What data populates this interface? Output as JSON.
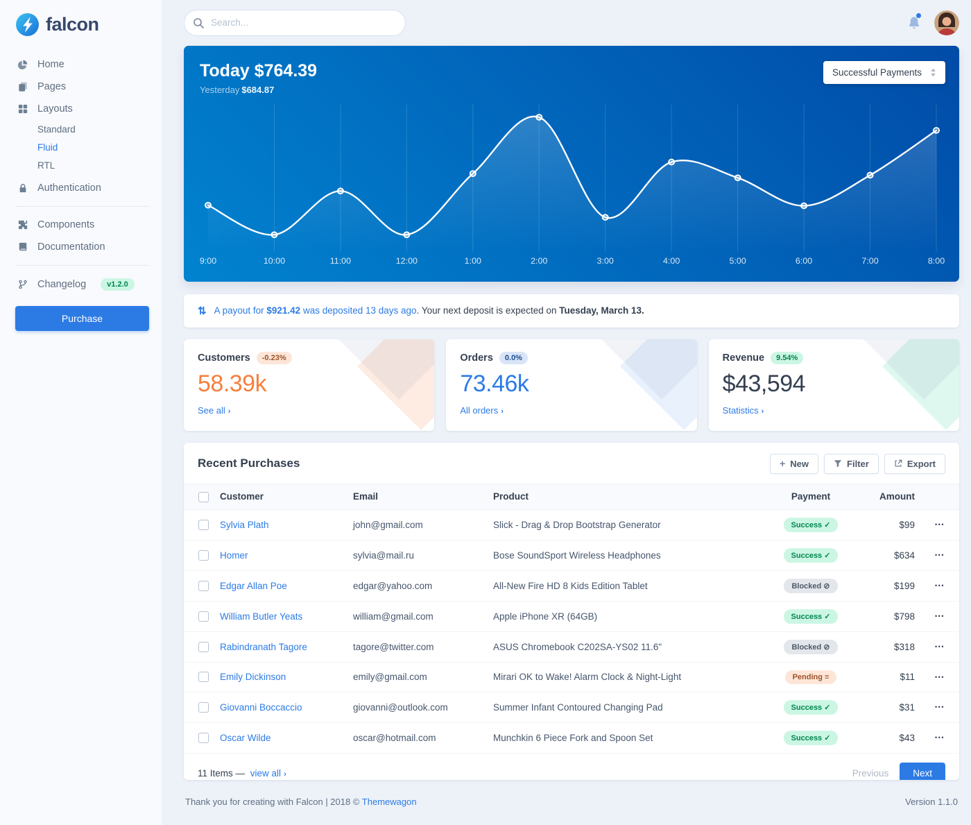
{
  "colors": {
    "primary": "#2c7be5",
    "success": "#00d27a",
    "warning": "#f5803e",
    "chart_gradient_start": "#0183d0",
    "chart_gradient_end": "#014ba7",
    "sidebar_bg": "#f9fafd",
    "body_bg": "#edf2f9"
  },
  "sidebar": {
    "logo_text": "falcon",
    "items": [
      {
        "label": "Home",
        "icon": "pie-chart-icon"
      },
      {
        "label": "Pages",
        "icon": "pages-icon"
      },
      {
        "label": "Layouts",
        "icon": "grid-icon",
        "children": [
          "Standard",
          "Fluid",
          "RTL"
        ],
        "active_child": "Fluid"
      },
      {
        "label": "Authentication",
        "icon": "lock-icon"
      },
      {
        "label": "Components",
        "icon": "puzzle-icon"
      },
      {
        "label": "Documentation",
        "icon": "book-icon"
      },
      {
        "label": "Changelog",
        "icon": "code-branch-icon",
        "badge": "v1.2.0"
      }
    ],
    "purchase_label": "Purchase"
  },
  "topbar": {
    "search_placeholder": "Search..."
  },
  "hero": {
    "title_prefix": "Today",
    "title_amount": "$764.39",
    "subtitle_prefix": "Yesterday",
    "subtitle_amount": "$684.87",
    "select_label": "Successful Payments"
  },
  "chart_data": {
    "type": "line",
    "title": "Successful payments by hour",
    "x": [
      "9:00",
      "10:00",
      "11:00",
      "12:00",
      "1:00",
      "2:00",
      "3:00",
      "4:00",
      "5:00",
      "6:00",
      "7:00",
      "8:00"
    ],
    "values": [
      78,
      22,
      105,
      22,
      138,
      245,
      55,
      160,
      130,
      77,
      135,
      220
    ],
    "ylim": [
      0,
      260
    ],
    "line_color": "#ffffff",
    "grid": true,
    "legend": false
  },
  "payout": {
    "link_pre": "A payout for ",
    "link_amount": "$921.42",
    "link_post": " was deposited 13 days ago",
    "mid": ". Your next deposit is expected on ",
    "strong": "Tuesday, March 13."
  },
  "stats": [
    {
      "title": "Customers",
      "badge": "-0.23%",
      "value": "58.39k",
      "link": "See all"
    },
    {
      "title": "Orders",
      "badge": "0.0%",
      "value": "73.46k",
      "link": "All orders"
    },
    {
      "title": "Revenue",
      "badge": "9.54%",
      "value": "$43,594",
      "link": "Statistics"
    }
  ],
  "purchases": {
    "title": "Recent Purchases",
    "buttons": {
      "new": "New",
      "filter": "Filter",
      "export": "Export"
    },
    "columns": [
      "Customer",
      "Email",
      "Product",
      "Payment",
      "Amount"
    ],
    "statuses": {
      "Success": {
        "bg": "#ccf6e4",
        "color": "#00864e",
        "icon": "✓"
      },
      "Blocked": {
        "bg": "#e3e6ea",
        "color": "#4d5969",
        "icon": "⊘"
      },
      "Pending": {
        "bg": "#fde6d8",
        "color": "#9d5228",
        "icon": "≡"
      }
    },
    "rows": [
      {
        "customer": "Sylvia Plath",
        "email": "john@gmail.com",
        "product": "Slick - Drag & Drop Bootstrap Generator",
        "payment": "Success",
        "amount": "$99"
      },
      {
        "customer": "Homer",
        "email": "sylvia@mail.ru",
        "product": "Bose SoundSport Wireless Headphones",
        "payment": "Success",
        "amount": "$634"
      },
      {
        "customer": "Edgar Allan Poe",
        "email": "edgar@yahoo.com",
        "product": "All-New Fire HD 8 Kids Edition Tablet",
        "payment": "Blocked",
        "amount": "$199"
      },
      {
        "customer": "William Butler Yeats",
        "email": "william@gmail.com",
        "product": "Apple iPhone XR (64GB)",
        "payment": "Success",
        "amount": "$798"
      },
      {
        "customer": "Rabindranath Tagore",
        "email": "tagore@twitter.com",
        "product": "ASUS Chromebook C202SA-YS02 11.6\"",
        "payment": "Blocked",
        "amount": "$318"
      },
      {
        "customer": "Emily Dickinson",
        "email": "emily@gmail.com",
        "product": "Mirari OK to Wake! Alarm Clock & Night-Light",
        "payment": "Pending",
        "amount": "$11"
      },
      {
        "customer": "Giovanni Boccaccio",
        "email": "giovanni@outlook.com",
        "product": "Summer Infant Contoured Changing Pad",
        "payment": "Success",
        "amount": "$31"
      },
      {
        "customer": "Oscar Wilde",
        "email": "oscar@hotmail.com",
        "product": "Munchkin 6 Piece Fork and Spoon Set",
        "payment": "Success",
        "amount": "$43"
      }
    ],
    "footer": {
      "items_text": "11 Items —",
      "view_all": "view all",
      "previous": "Previous",
      "next": "Next"
    }
  },
  "footer": {
    "thanks": "Thank you for creating with Falcon | 2018 © ",
    "brand": "Themewagon",
    "version": "Version 1.1.0"
  }
}
